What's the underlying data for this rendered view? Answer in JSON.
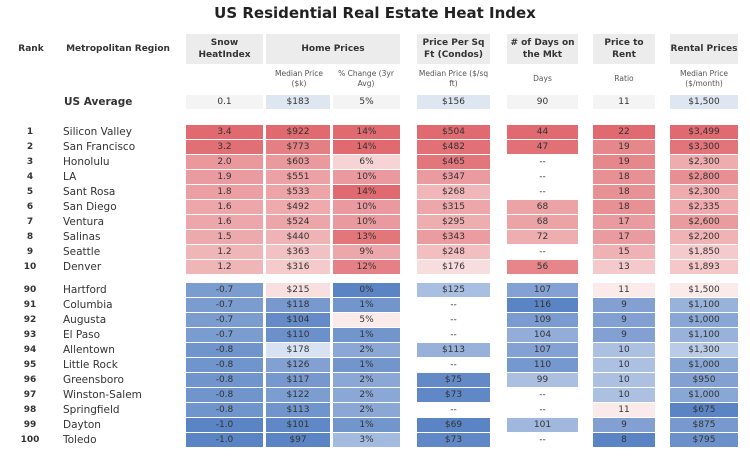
{
  "title": "US Residential Real Estate Heat Index",
  "headers": {
    "rank": "Rank",
    "region": "Metropolitan Region",
    "snow": "Snow HeatIndex",
    "home_prices": "Home Prices",
    "price_sqft": "Price Per Sq Ft (Condos)",
    "days": "# of Days on the Mkt",
    "price_rent": "Price to Rent",
    "rental": "Rental Prices"
  },
  "subheaders": {
    "median_price": "Median Price ($k)",
    "pct_change": "% Change (3yr Avg)",
    "sqft_median": "Median Price ($/sq ft)",
    "days": "Days",
    "ratio": "Ratio",
    "rental_median": "Median Price ($/month)"
  },
  "chart_data": {
    "type": "table",
    "title": "US Residential Real Estate Heat Index",
    "columns": [
      "Rank",
      "Metropolitan Region",
      "Snow HeatIndex",
      "Median Price ($k)",
      "% Change (3yr Avg)",
      "Median Price ($/sq ft)",
      "Days",
      "Ratio",
      "Median Price ($/month)"
    ],
    "average": {
      "rank": "",
      "region": "US Average",
      "snow": "0.1",
      "median": "$183",
      "change": "5%",
      "sqft": "$156",
      "days": "90",
      "ratio": "11",
      "rent": "$1,500"
    },
    "hot_rows": [
      {
        "rank": "1",
        "region": "Silicon Valley",
        "snow": "3.4",
        "median": "$922",
        "change": "14%",
        "sqft": "$504",
        "days": "44",
        "ratio": "22",
        "rent": "$3,499"
      },
      {
        "rank": "2",
        "region": "San Francisco",
        "snow": "3.2",
        "median": "$773",
        "change": "14%",
        "sqft": "$482",
        "days": "47",
        "ratio": "19",
        "rent": "$3,300"
      },
      {
        "rank": "3",
        "region": "Honolulu",
        "snow": "2.0",
        "median": "$603",
        "change": "6%",
        "sqft": "$465",
        "days": "--",
        "ratio": "19",
        "rent": "$2,300"
      },
      {
        "rank": "4",
        "region": "LA",
        "snow": "1.9",
        "median": "$551",
        "change": "10%",
        "sqft": "$347",
        "days": "--",
        "ratio": "18",
        "rent": "$2,800"
      },
      {
        "rank": "5",
        "region": "Sant Rosa",
        "snow": "1.8",
        "median": "$533",
        "change": "14%",
        "sqft": "$268",
        "days": "--",
        "ratio": "18",
        "rent": "$2,300"
      },
      {
        "rank": "6",
        "region": "San Diego",
        "snow": "1.6",
        "median": "$492",
        "change": "10%",
        "sqft": "$315",
        "days": "68",
        "ratio": "18",
        "rent": "$2,335"
      },
      {
        "rank": "7",
        "region": "Ventura",
        "snow": "1.6",
        "median": "$524",
        "change": "10%",
        "sqft": "$295",
        "days": "68",
        "ratio": "17",
        "rent": "$2,600"
      },
      {
        "rank": "8",
        "region": "Salinas",
        "snow": "1.5",
        "median": "$440",
        "change": "13%",
        "sqft": "$343",
        "days": "72",
        "ratio": "17",
        "rent": "$2,200"
      },
      {
        "rank": "9",
        "region": "Seattle",
        "snow": "1.2",
        "median": "$363",
        "change": "9%",
        "sqft": "$248",
        "days": "--",
        "ratio": "15",
        "rent": "$1,850"
      },
      {
        "rank": "10",
        "region": "Denver",
        "snow": "1.2",
        "median": "$316",
        "change": "12%",
        "sqft": "$176",
        "days": "56",
        "ratio": "13",
        "rent": "$1,893"
      }
    ],
    "cold_rows": [
      {
        "rank": "90",
        "region": "Hartford",
        "snow": "-0.7",
        "median": "$215",
        "change": "0%",
        "sqft": "$125",
        "days": "107",
        "ratio": "11",
        "rent": "$1,500"
      },
      {
        "rank": "91",
        "region": "Columbia",
        "snow": "-0.7",
        "median": "$118",
        "change": "1%",
        "sqft": "--",
        "days": "116",
        "ratio": "9",
        "rent": "$1,100"
      },
      {
        "rank": "92",
        "region": "Augusta",
        "snow": "-0.7",
        "median": "$104",
        "change": "5%",
        "sqft": "--",
        "days": "109",
        "ratio": "9",
        "rent": "$1,000"
      },
      {
        "rank": "93",
        "region": "El Paso",
        "snow": "-0.7",
        "median": "$110",
        "change": "1%",
        "sqft": "--",
        "days": "104",
        "ratio": "9",
        "rent": "$1,100"
      },
      {
        "rank": "94",
        "region": "Allentown",
        "snow": "-0.8",
        "median": "$178",
        "change": "2%",
        "sqft": "$113",
        "days": "107",
        "ratio": "10",
        "rent": "$1,300"
      },
      {
        "rank": "95",
        "region": "Little Rock",
        "snow": "-0.8",
        "median": "$126",
        "change": "1%",
        "sqft": "--",
        "days": "110",
        "ratio": "10",
        "rent": "$1,000"
      },
      {
        "rank": "96",
        "region": "Greensboro",
        "snow": "-0.8",
        "median": "$117",
        "change": "2%",
        "sqft": "$75",
        "days": "99",
        "ratio": "10",
        "rent": "$950"
      },
      {
        "rank": "97",
        "region": "Winston-Salem",
        "snow": "-0.8",
        "median": "$122",
        "change": "2%",
        "sqft": "$73",
        "days": "--",
        "ratio": "10",
        "rent": "$1,000"
      },
      {
        "rank": "98",
        "region": "Springfield",
        "snow": "-0.8",
        "median": "$113",
        "change": "2%",
        "sqft": "--",
        "days": "--",
        "ratio": "11",
        "rent": "$675"
      },
      {
        "rank": "99",
        "region": "Dayton",
        "snow": "-1.0",
        "median": "$101",
        "change": "1%",
        "sqft": "$69",
        "days": "101",
        "ratio": "9",
        "rent": "$875"
      },
      {
        "rank": "100",
        "region": "Toledo",
        "snow": "-1.0",
        "median": "$97",
        "change": "3%",
        "sqft": "$73",
        "days": "--",
        "ratio": "8",
        "rent": "$795"
      }
    ]
  },
  "colors": {
    "header_bg": "#ececec",
    "hot": "#e06a70",
    "cold": "#5b84c4",
    "neutral": "#f0f0f0",
    "text": "#333333"
  }
}
